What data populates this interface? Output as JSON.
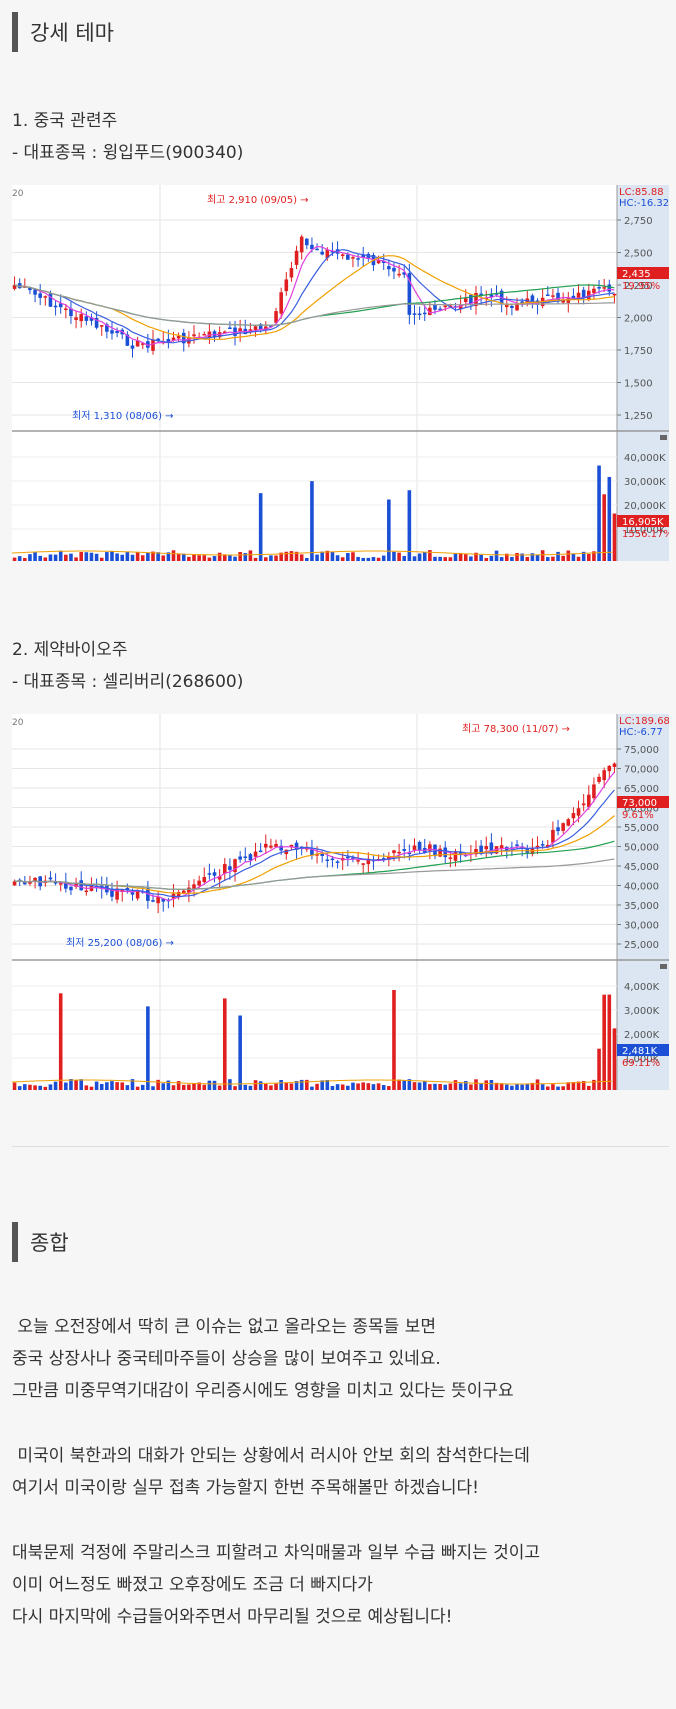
{
  "section1": {
    "title": "강세 테마"
  },
  "theme1": {
    "title": "1. 중국 관련주",
    "sub": " - 대표종목 : 윙입푸드(900340)",
    "chart": {
      "corner_label": "20",
      "lc": "LC:85.88",
      "hc": "HC:-16.32",
      "price_ticks": [
        "2,750",
        "2,500",
        "2,250",
        "2,000",
        "1,750",
        "1,500",
        "1,250"
      ],
      "current_price": "2,435",
      "change_pct": "19.95%",
      "high_note": "최고 2,910 (09/05) →",
      "low_note": "최저 1,310 (08/06) →",
      "volume_ticks": [
        "40,000K",
        "30,000K",
        "20,000K",
        "10,000K"
      ],
      "current_volume": "16,905K",
      "volume_pct": "1556.17%"
    }
  },
  "theme2": {
    "title": "2. 제약바이오주",
    "sub": " - 대표종목 : 셀리버리(268600)",
    "chart": {
      "corner_label": "20",
      "lc": "LC:189.68",
      "hc": "HC:-6.77",
      "price_ticks": [
        "75,000",
        "70,000",
        "65,000",
        "60,000",
        "55,000",
        "50,000",
        "45,000",
        "40,000",
        "35,000",
        "30,000",
        "25,000"
      ],
      "current_price": "73,000",
      "change_pct": "9.61%",
      "high_note": "최고 78,300 (11/07) →",
      "low_note": "최저 25,200 (08/06) →",
      "volume_ticks": [
        "4,000K",
        "3,000K",
        "2,000K",
        "1,000K"
      ],
      "current_volume": "2,481K",
      "volume_pct": "69.11%"
    }
  },
  "section2": {
    "title": "종합"
  },
  "summary": {
    "lines1": [
      " 오늘 오전장에서 딱히 큰 이슈는 없고 올라오는 종목들 보면",
      "중국 상장사나 중국테마주들이 상승을 많이 보여주고 있네요.",
      "그만큼 미중무역기대감이 우리증시에도 영향을 미치고 있다는 뜻이구요"
    ],
    "lines2": [
      " 미국이 북한과의 대화가 안되는 상황에서 러시아 안보 회의 참석한다는데",
      "여기서 미국이랑 실무 접촉 가능할지 한번 주목해볼만 하겠습니다!"
    ],
    "lines3": [
      "대북문제 걱정에 주말리스크 피할려고 차익매물과 일부 수급 빠지는 것이고",
      "이미 어느정도 빠졌고 오후장에도 조금 더 빠지다가",
      "다시 마지막에 수급들어와주면서 마무리될 것으로 예상됩니다!"
    ]
  },
  "colors": {
    "up": "#e02020",
    "down": "#1a4fd6",
    "ma5": "#e040e0",
    "ma10": "#3a5fe0",
    "ma20": "#f0a000",
    "ma60": "#20a050",
    "ma120": "#999999",
    "axis_bg": "#dbe6f2"
  }
}
